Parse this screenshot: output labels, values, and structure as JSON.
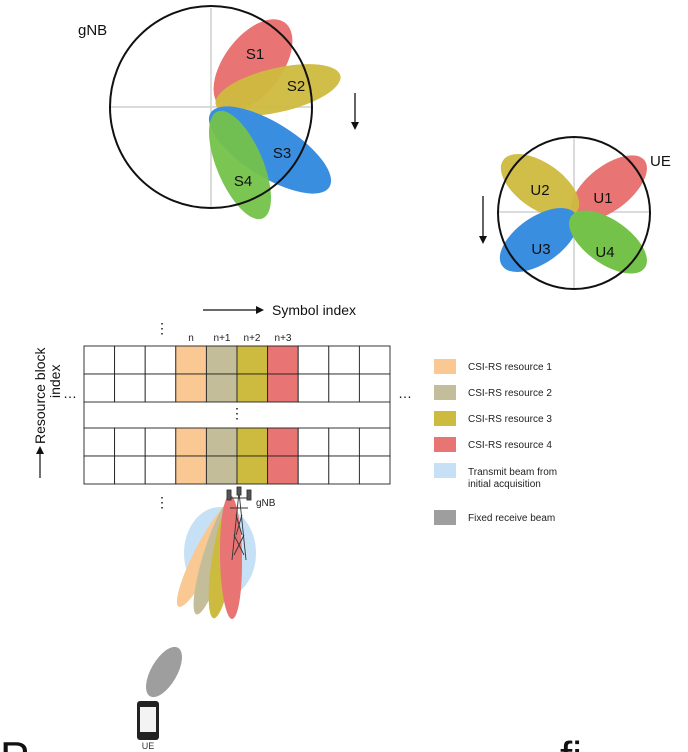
{
  "gnb_top": {
    "label": "gNB",
    "beams": [
      {
        "label": "S1",
        "color": "#e87474"
      },
      {
        "label": "S2",
        "color": "#cdbb3f"
      },
      {
        "label": "S3",
        "color": "#3a8ee0"
      },
      {
        "label": "S4",
        "color": "#74c24a"
      }
    ]
  },
  "ue_top": {
    "label": "UE",
    "beams": [
      {
        "label": "U1",
        "color": "#e87474"
      },
      {
        "label": "U2",
        "color": "#cdbb3f"
      },
      {
        "label": "U3",
        "color": "#3a8ee0"
      },
      {
        "label": "U4",
        "color": "#74c24a"
      }
    ]
  },
  "grid": {
    "x_axis_label": "Symbol index",
    "y_axis_label_line1": "Resource block",
    "y_axis_label_line2": "index",
    "column_headers": [
      "n",
      "n+1",
      "n+2",
      "n+3"
    ],
    "ellipsis": "⋮",
    "hellipsis": "…"
  },
  "legend": [
    {
      "label": "CSI-RS resource 1",
      "color": "#f9c893"
    },
    {
      "label": "CSI-RS resource 2",
      "color": "#c4bd99"
    },
    {
      "label": "CSI-RS resource 3",
      "color": "#cdbb3f"
    },
    {
      "label": "CSI-RS resource 4",
      "color": "#e87474"
    },
    {
      "label_line1": "Transmit beam from",
      "label_line2": "initial acquisition",
      "color": "#c6e1f6"
    },
    {
      "label": "Fixed receive beam",
      "color": "#9e9e9e"
    }
  ],
  "bottom": {
    "gnb_label": "gNB",
    "ue_label": "UE",
    "title_fragment_left": "P",
    "title_fragment_right": "fi"
  }
}
